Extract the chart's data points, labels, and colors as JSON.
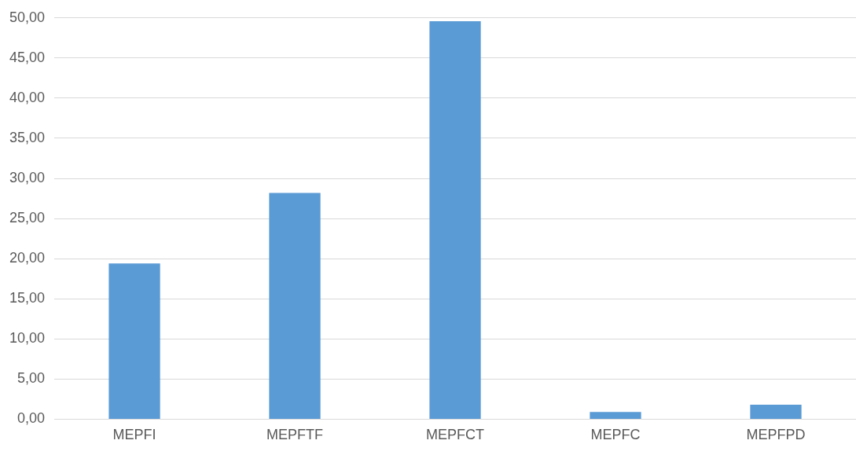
{
  "chart_data": {
    "type": "bar",
    "categories": [
      "MEPFI",
      "MEPFTF",
      "MEPFCT",
      "MEPFC",
      "MEPFPD"
    ],
    "values": [
      19.4,
      28.2,
      49.6,
      0.9,
      1.8
    ],
    "color": "#5b9bd5",
    "ylim": [
      0,
      50
    ],
    "yticks": [
      {
        "value": 0,
        "label": "0,00"
      },
      {
        "value": 5,
        "label": "5,00"
      },
      {
        "value": 10,
        "label": "10,00"
      },
      {
        "value": 15,
        "label": "15,00"
      },
      {
        "value": 20,
        "label": "20,00"
      },
      {
        "value": 25,
        "label": "25,00"
      },
      {
        "value": 30,
        "label": "30,00"
      },
      {
        "value": 35,
        "label": "35,00"
      },
      {
        "value": 40,
        "label": "40,00"
      },
      {
        "value": 45,
        "label": "45,00"
      },
      {
        "value": 50,
        "label": "50,00"
      }
    ],
    "grid": "y"
  }
}
